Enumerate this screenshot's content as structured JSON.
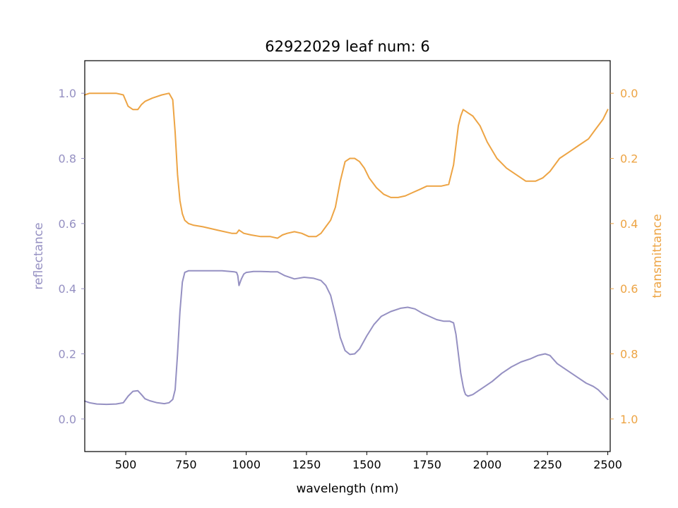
{
  "chart_data": {
    "type": "line",
    "title": "62922029 leaf num: 6",
    "xlabel": "wavelength (nm)",
    "ylabel_left": "reflectance",
    "ylabel_right": "transmittance",
    "xlim": [
      330,
      2510
    ],
    "ylim_left": [
      -0.1,
      1.1
    ],
    "ylim_right": [
      1.1,
      -0.1
    ],
    "right_axis_inverted": true,
    "xticks": [
      500,
      750,
      1000,
      1250,
      1500,
      1750,
      2000,
      2250,
      2500
    ],
    "xtick_labels": [
      "500",
      "750",
      "1000",
      "1250",
      "1500",
      "1750",
      "2000",
      "2250",
      "2500"
    ],
    "yticks_left": [
      0.0,
      0.2,
      0.4,
      0.6,
      0.8,
      1.0
    ],
    "ytick_labels_left": [
      "0.0",
      "0.2",
      "0.4",
      "0.6",
      "0.8",
      "1.0"
    ],
    "yticks_right": [
      0.0,
      0.2,
      0.4,
      0.6,
      0.8,
      1.0
    ],
    "ytick_labels_right": [
      "0.0",
      "0.2",
      "0.4",
      "0.6",
      "0.8",
      "1.0"
    ],
    "grid": false,
    "colors": {
      "reflectance": "#9590c2",
      "transmittance": "#eda444"
    },
    "series": [
      {
        "name": "reflectance",
        "axis": "left",
        "x": [
          330,
          350,
          380,
          420,
          460,
          490,
          510,
          530,
          550,
          565,
          580,
          600,
          630,
          660,
          680,
          695,
          705,
          715,
          725,
          735,
          745,
          760,
          800,
          850,
          900,
          950,
          960,
          965,
          970,
          975,
          980,
          990,
          1000,
          1030,
          1060,
          1100,
          1130,
          1160,
          1200,
          1240,
          1280,
          1310,
          1330,
          1350,
          1370,
          1390,
          1410,
          1430,
          1450,
          1470,
          1500,
          1530,
          1560,
          1600,
          1640,
          1670,
          1700,
          1730,
          1760,
          1790,
          1820,
          1845,
          1860,
          1870,
          1880,
          1890,
          1900,
          1905,
          1910,
          1920,
          1940,
          1960,
          1990,
          2020,
          2060,
          2100,
          2140,
          2180,
          2210,
          2240,
          2260,
          2290,
          2320,
          2350,
          2380,
          2410,
          2440,
          2460,
          2480,
          2500
        ],
        "y": [
          0.055,
          0.05,
          0.046,
          0.045,
          0.046,
          0.05,
          0.07,
          0.085,
          0.087,
          0.075,
          0.062,
          0.056,
          0.05,
          0.047,
          0.05,
          0.06,
          0.09,
          0.2,
          0.33,
          0.42,
          0.45,
          0.455,
          0.455,
          0.455,
          0.455,
          0.452,
          0.45,
          0.44,
          0.41,
          0.42,
          0.43,
          0.445,
          0.45,
          0.453,
          0.453,
          0.452,
          0.452,
          0.44,
          0.43,
          0.435,
          0.432,
          0.425,
          0.41,
          0.38,
          0.32,
          0.25,
          0.21,
          0.198,
          0.2,
          0.215,
          0.255,
          0.29,
          0.315,
          0.33,
          0.34,
          0.343,
          0.338,
          0.325,
          0.315,
          0.305,
          0.3,
          0.3,
          0.295,
          0.26,
          0.2,
          0.14,
          0.1,
          0.085,
          0.075,
          0.07,
          0.075,
          0.085,
          0.1,
          0.115,
          0.14,
          0.16,
          0.175,
          0.185,
          0.195,
          0.2,
          0.195,
          0.17,
          0.155,
          0.14,
          0.125,
          0.11,
          0.1,
          0.09,
          0.075,
          0.06
        ]
      },
      {
        "name": "transmittance",
        "axis": "right",
        "x": [
          330,
          350,
          380,
          420,
          460,
          490,
          510,
          530,
          550,
          565,
          580,
          610,
          650,
          680,
          695,
          705,
          715,
          725,
          735,
          745,
          760,
          780,
          820,
          880,
          940,
          960,
          970,
          990,
          1020,
          1060,
          1100,
          1130,
          1150,
          1170,
          1200,
          1230,
          1260,
          1290,
          1310,
          1330,
          1350,
          1370,
          1390,
          1410,
          1430,
          1450,
          1470,
          1490,
          1510,
          1540,
          1570,
          1600,
          1630,
          1660,
          1690,
          1720,
          1750,
          1780,
          1810,
          1840,
          1860,
          1870,
          1880,
          1890,
          1900,
          1910,
          1920,
          1940,
          1970,
          2000,
          2040,
          2080,
          2120,
          2160,
          2200,
          2230,
          2260,
          2300,
          2340,
          2380,
          2420,
          2450,
          2480,
          2500
        ],
        "y": [
          0.005,
          0.0,
          0.0,
          0.0,
          0.0,
          0.005,
          0.04,
          0.05,
          0.05,
          0.035,
          0.025,
          0.015,
          0.005,
          0.0,
          0.02,
          0.12,
          0.25,
          0.33,
          0.37,
          0.39,
          0.4,
          0.405,
          0.41,
          0.42,
          0.43,
          0.43,
          0.42,
          0.43,
          0.435,
          0.44,
          0.44,
          0.445,
          0.435,
          0.43,
          0.425,
          0.43,
          0.44,
          0.44,
          0.43,
          0.41,
          0.39,
          0.35,
          0.27,
          0.21,
          0.2,
          0.2,
          0.21,
          0.23,
          0.26,
          0.29,
          0.31,
          0.32,
          0.32,
          0.315,
          0.305,
          0.295,
          0.285,
          0.285,
          0.285,
          0.28,
          0.22,
          0.16,
          0.1,
          0.07,
          0.05,
          0.055,
          0.06,
          0.07,
          0.1,
          0.15,
          0.2,
          0.23,
          0.25,
          0.27,
          0.27,
          0.26,
          0.24,
          0.2,
          0.18,
          0.16,
          0.14,
          0.11,
          0.08,
          0.05
        ]
      }
    ]
  }
}
